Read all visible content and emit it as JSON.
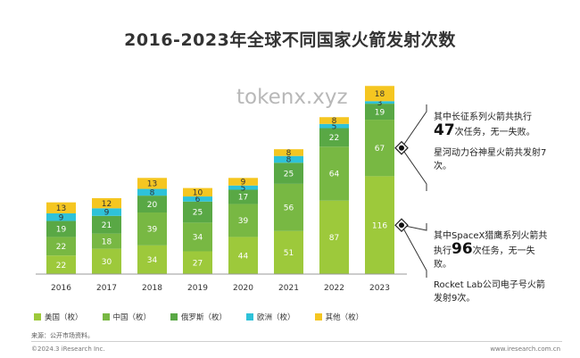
{
  "title": "2016-2023年全球不同国家火箭发射次数",
  "watermark": "tokenx.xyz",
  "chart_data": {
    "type": "bar",
    "stacked": true,
    "categories": [
      "2016",
      "2017",
      "2018",
      "2019",
      "2020",
      "2021",
      "2022",
      "2023"
    ],
    "series": [
      {
        "name": "美国（枚）",
        "color": "#9dc93b",
        "values": [
          22,
          30,
          34,
          27,
          44,
          51,
          87,
          116
        ]
      },
      {
        "name": "中国（枚）",
        "color": "#78b843",
        "values": [
          22,
          18,
          39,
          34,
          39,
          56,
          64,
          67
        ]
      },
      {
        "name": "俄罗斯（枚）",
        "color": "#59a845",
        "values": [
          19,
          21,
          20,
          25,
          17,
          25,
          22,
          19
        ]
      },
      {
        "name": "欧洲（枚）",
        "color": "#2ec2d9",
        "values": [
          9,
          9,
          8,
          6,
          5,
          8,
          5,
          3
        ]
      },
      {
        "name": "其他（枚）",
        "color": "#f5c621",
        "values": [
          13,
          12,
          13,
          10,
          9,
          8,
          8,
          18
        ]
      }
    ],
    "legend_position": "bottom",
    "grid": false
  },
  "annotations": {
    "china": {
      "line1": "其中长征系列火箭共执行",
      "number": "47",
      "line2": "次任务，无一失败。",
      "line3": "星河动力谷神星火箭共发射7次。"
    },
    "usa": {
      "line1": "其中SpaceX猎鹰系列火箭共",
      "line2_prefix": "执行",
      "number": "96",
      "line2_suffix": "次任务，无一失",
      "line3": "败。",
      "line4": "Rocket Lab公司电子号火箭",
      "line5": "发射9次。"
    }
  },
  "footer": {
    "source": "来源：公开市场资料。",
    "copyright": "©2024.3 iResearch Inc.",
    "site": "www.iresearch.com.cn"
  }
}
